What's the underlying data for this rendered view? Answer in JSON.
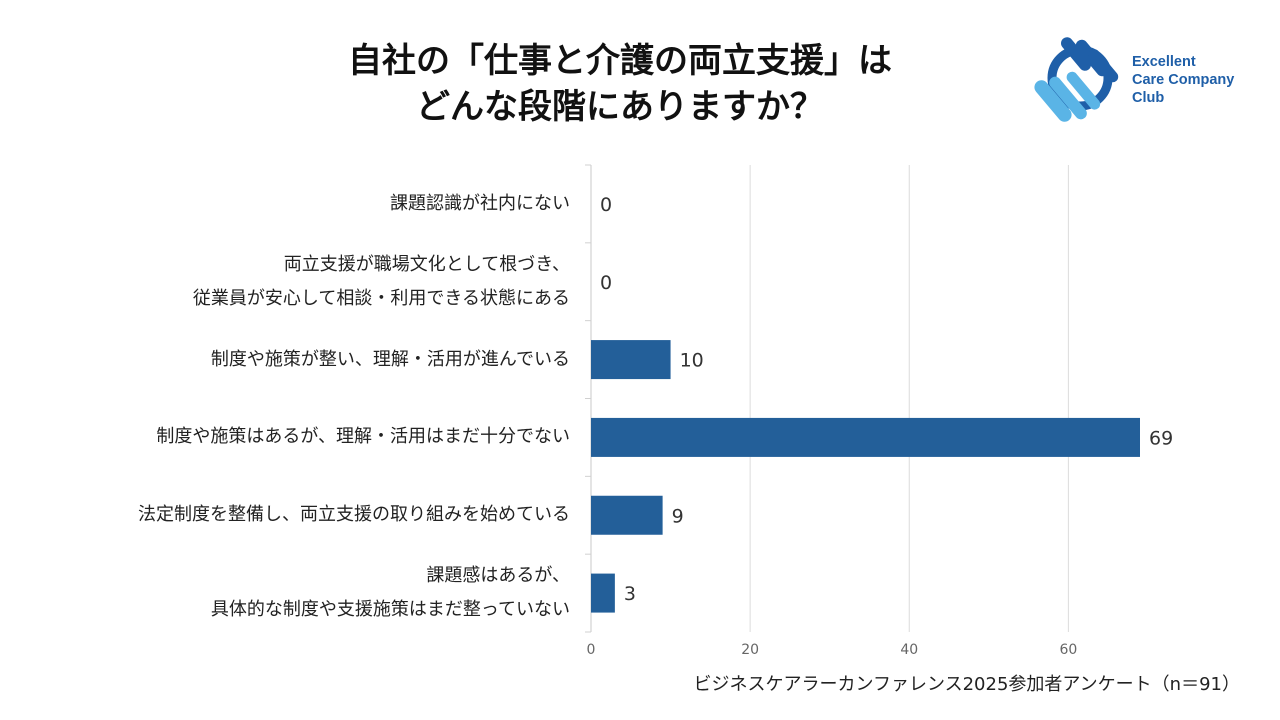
{
  "title": {
    "line1": "自社の「仕事と介護の両立支援」は",
    "line2": "どんな段階にありますか？"
  },
  "logo": {
    "line1": "Excellent",
    "line2": "Care Company",
    "line3": "Club",
    "colors": {
      "dark": "#1f5fa8",
      "light": "#5ab4e6"
    }
  },
  "source": "ビジネスケアラーカンファレンス2025参加者アンケート（n＝91）",
  "chart_data": {
    "type": "bar",
    "orientation": "horizontal",
    "categories": [
      [
        "課題認識が社内にない"
      ],
      [
        "両立支援が職場文化として根づき、",
        "従業員が安心して相談・利用できる状態にある"
      ],
      [
        "制度や施策が整い、理解・活用が進んでいる"
      ],
      [
        "制度や施策はあるが、理解・活用はまだ十分でない"
      ],
      [
        "法定制度を整備し、両立支援の取り組みを始めている"
      ],
      [
        "課題感はあるが、",
        "具体的な制度や支援施策はまだ整っていない"
      ]
    ],
    "values": [
      0,
      0,
      10,
      69,
      9,
      3
    ],
    "xticks": [
      0,
      20,
      40,
      60
    ],
    "xlim": [
      0,
      69
    ],
    "data_labels": true,
    "grid": true,
    "bar_color": "#235f99"
  }
}
